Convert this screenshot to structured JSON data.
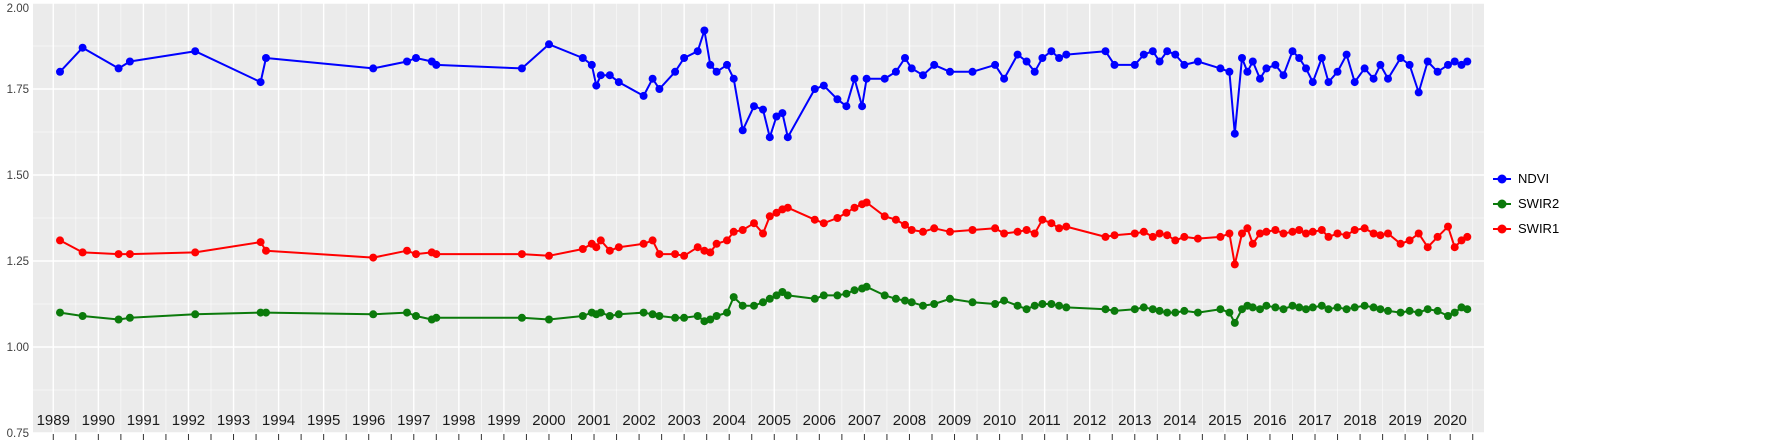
{
  "chart": {
    "title": "",
    "legend": {
      "position": "right",
      "items": [
        "NDVI",
        "SWIR2",
        "SWIR1"
      ]
    }
  },
  "chart_data": {
    "type": "line",
    "title": "",
    "xlabel": "",
    "ylabel": "",
    "xlim": [
      1988.55,
      2020.75
    ],
    "ylim": [
      0.75,
      2.0
    ],
    "grid": true,
    "panel_color": "#EBEBEB",
    "grid_color": "#FFFFFF",
    "x_ticks": [
      1989,
      1990,
      1991,
      1992,
      1993,
      1994,
      1995,
      1996,
      1997,
      1998,
      1999,
      2000,
      2001,
      2002,
      2003,
      2004,
      2005,
      2006,
      2007,
      2008,
      2009,
      2010,
      2011,
      2012,
      2013,
      2014,
      2015,
      2016,
      2017,
      2018,
      2019,
      2020
    ],
    "y_ticks": [
      2.0,
      1.75,
      1.5,
      1.25,
      1.0,
      0.75
    ],
    "y_tick_labels": [
      "2.00",
      "1.75",
      "1.50",
      "1.25",
      "1.00",
      "0.75"
    ],
    "x": [
      1989.15,
      1989.65,
      1990.45,
      1990.7,
      1992.15,
      1993.6,
      1993.72,
      1996.1,
      1996.85,
      1997.05,
      1997.4,
      1997.5,
      1999.4,
      2000.0,
      2000.75,
      2000.95,
      2001.05,
      2001.15,
      2001.35,
      2001.55,
      2002.1,
      2002.3,
      2002.45,
      2002.8,
      2003.0,
      2003.3,
      2003.45,
      2003.58,
      2003.72,
      2003.95,
      2004.1,
      2004.3,
      2004.55,
      2004.75,
      2004.9,
      2005.05,
      2005.18,
      2005.3,
      2005.9,
      2006.1,
      2006.4,
      2006.6,
      2006.78,
      2006.95,
      2007.05,
      2007.45,
      2007.7,
      2007.9,
      2008.05,
      2008.3,
      2008.55,
      2008.9,
      2009.4,
      2009.9,
      2010.1,
      2010.4,
      2010.6,
      2010.78,
      2010.95,
      2011.15,
      2011.32,
      2011.48,
      2012.35,
      2012.55,
      2013.0,
      2013.2,
      2013.4,
      2013.55,
      2013.72,
      2013.9,
      2014.1,
      2014.4,
      2014.9,
      2015.1,
      2015.22,
      2015.38,
      2015.5,
      2015.62,
      2015.78,
      2015.92,
      2016.12,
      2016.3,
      2016.5,
      2016.65,
      2016.8,
      2016.95,
      2017.15,
      2017.3,
      2017.5,
      2017.7,
      2017.88,
      2018.1,
      2018.3,
      2018.45,
      2018.62,
      2018.9,
      2019.1,
      2019.3,
      2019.5,
      2019.72,
      2019.95,
      2020.1,
      2020.25,
      2020.38
    ],
    "series": [
      {
        "name": "NDVI",
        "color": "#0000FF",
        "values": [
          1.8,
          1.87,
          1.81,
          1.83,
          1.86,
          1.77,
          1.84,
          1.81,
          1.83,
          1.84,
          1.83,
          1.82,
          1.81,
          1.88,
          1.84,
          1.82,
          1.76,
          1.79,
          1.79,
          1.77,
          1.73,
          1.78,
          1.75,
          1.8,
          1.84,
          1.86,
          1.92,
          1.82,
          1.8,
          1.82,
          1.78,
          1.63,
          1.7,
          1.69,
          1.61,
          1.67,
          1.68,
          1.61,
          1.75,
          1.76,
          1.72,
          1.7,
          1.78,
          1.7,
          1.78,
          1.78,
          1.8,
          1.84,
          1.81,
          1.79,
          1.82,
          1.8,
          1.8,
          1.82,
          1.78,
          1.85,
          1.83,
          1.8,
          1.84,
          1.86,
          1.84,
          1.85,
          1.86,
          1.82,
          1.82,
          1.85,
          1.86,
          1.83,
          1.86,
          1.85,
          1.82,
          1.83,
          1.81,
          1.8,
          1.62,
          1.84,
          1.8,
          1.83,
          1.78,
          1.81,
          1.82,
          1.79,
          1.86,
          1.84,
          1.81,
          1.77,
          1.84,
          1.77,
          1.8,
          1.85,
          1.77,
          1.81,
          1.78,
          1.82,
          1.78,
          1.84,
          1.82,
          1.74,
          1.83,
          1.8,
          1.82,
          1.83,
          1.82,
          1.83
        ]
      },
      {
        "name": "SWIR2",
        "color": "#0B7A0B",
        "values": [
          1.1,
          1.09,
          1.08,
          1.085,
          1.095,
          1.1,
          1.1,
          1.095,
          1.1,
          1.09,
          1.08,
          1.085,
          1.085,
          1.08,
          1.09,
          1.1,
          1.095,
          1.1,
          1.09,
          1.095,
          1.1,
          1.095,
          1.09,
          1.085,
          1.085,
          1.09,
          1.075,
          1.08,
          1.09,
          1.1,
          1.145,
          1.12,
          1.12,
          1.13,
          1.14,
          1.15,
          1.16,
          1.15,
          1.14,
          1.15,
          1.15,
          1.155,
          1.165,
          1.17,
          1.175,
          1.15,
          1.14,
          1.135,
          1.13,
          1.12,
          1.125,
          1.14,
          1.13,
          1.125,
          1.135,
          1.12,
          1.11,
          1.12,
          1.125,
          1.125,
          1.12,
          1.115,
          1.11,
          1.105,
          1.11,
          1.115,
          1.11,
          1.105,
          1.1,
          1.1,
          1.105,
          1.1,
          1.11,
          1.1,
          1.07,
          1.11,
          1.12,
          1.115,
          1.11,
          1.12,
          1.115,
          1.11,
          1.12,
          1.115,
          1.11,
          1.115,
          1.12,
          1.11,
          1.115,
          1.11,
          1.115,
          1.12,
          1.115,
          1.11,
          1.105,
          1.1,
          1.105,
          1.1,
          1.11,
          1.105,
          1.09,
          1.1,
          1.115,
          1.11
        ]
      },
      {
        "name": "SWIR1",
        "color": "#FF0000",
        "values": [
          1.31,
          1.275,
          1.27,
          1.27,
          1.275,
          1.305,
          1.28,
          1.26,
          1.28,
          1.27,
          1.275,
          1.27,
          1.27,
          1.265,
          1.285,
          1.3,
          1.29,
          1.31,
          1.28,
          1.29,
          1.3,
          1.31,
          1.27,
          1.27,
          1.265,
          1.29,
          1.28,
          1.275,
          1.3,
          1.31,
          1.335,
          1.34,
          1.36,
          1.33,
          1.38,
          1.39,
          1.4,
          1.405,
          1.37,
          1.36,
          1.375,
          1.39,
          1.405,
          1.415,
          1.42,
          1.38,
          1.37,
          1.355,
          1.34,
          1.335,
          1.345,
          1.335,
          1.34,
          1.345,
          1.33,
          1.335,
          1.34,
          1.33,
          1.37,
          1.36,
          1.345,
          1.35,
          1.32,
          1.325,
          1.33,
          1.335,
          1.32,
          1.33,
          1.325,
          1.31,
          1.32,
          1.315,
          1.32,
          1.33,
          1.24,
          1.33,
          1.345,
          1.3,
          1.33,
          1.335,
          1.34,
          1.33,
          1.335,
          1.34,
          1.33,
          1.335,
          1.34,
          1.32,
          1.33,
          1.325,
          1.34,
          1.345,
          1.33,
          1.325,
          1.33,
          1.3,
          1.31,
          1.33,
          1.29,
          1.32,
          1.35,
          1.29,
          1.31,
          1.32
        ]
      }
    ]
  }
}
